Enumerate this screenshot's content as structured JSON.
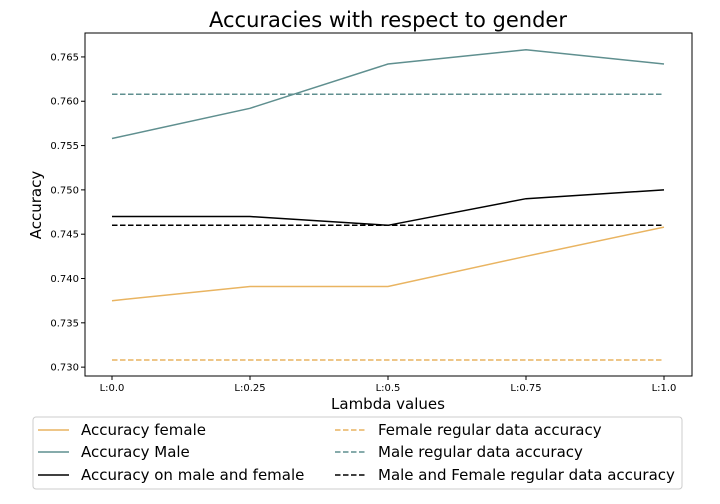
{
  "chart_data": {
    "type": "line",
    "title": "Accuracies with respect to gender",
    "xlabel": "Lambda values",
    "ylabel": "Accuracy",
    "categories": [
      "L:0.0",
      "L:0.25",
      "L:0.5",
      "L:0.75",
      "L:1.0"
    ],
    "ylim": [
      0.729,
      0.7677
    ],
    "yticks": [
      0.73,
      0.735,
      0.74,
      0.745,
      0.75,
      0.755,
      0.76,
      0.765
    ],
    "ytick_labels": [
      "0.730",
      "0.735",
      "0.740",
      "0.745",
      "0.750",
      "0.755",
      "0.760",
      "0.765"
    ],
    "grid": false,
    "legend_position": "bottom",
    "series": [
      {
        "name": "Accuracy female",
        "values": [
          0.7375,
          0.7391,
          0.7391,
          0.7425,
          0.7458
        ],
        "color": "#e9b461",
        "style": "solid"
      },
      {
        "name": "Accuracy Male",
        "values": [
          0.7558,
          0.7592,
          0.7642,
          0.7658,
          0.7642
        ],
        "color": "#5f8f8f",
        "style": "solid"
      },
      {
        "name": "Accuracy on male and female",
        "values": [
          0.747,
          0.747,
          0.746,
          0.749,
          0.75
        ],
        "color": "#000000",
        "style": "solid"
      },
      {
        "name": "Female regular data accuracy",
        "values": [
          0.7308,
          0.7308,
          0.7308,
          0.7308,
          0.7308
        ],
        "color": "#e9b461",
        "style": "dashed"
      },
      {
        "name": "Male regular data accuracy",
        "values": [
          0.7608,
          0.7608,
          0.7608,
          0.7608,
          0.7608
        ],
        "color": "#5f8f8f",
        "style": "dashed"
      },
      {
        "name": "Male and Female regular data accuracy",
        "values": [
          0.746,
          0.746,
          0.746,
          0.746,
          0.746
        ],
        "color": "#000000",
        "style": "dashed"
      }
    ]
  }
}
